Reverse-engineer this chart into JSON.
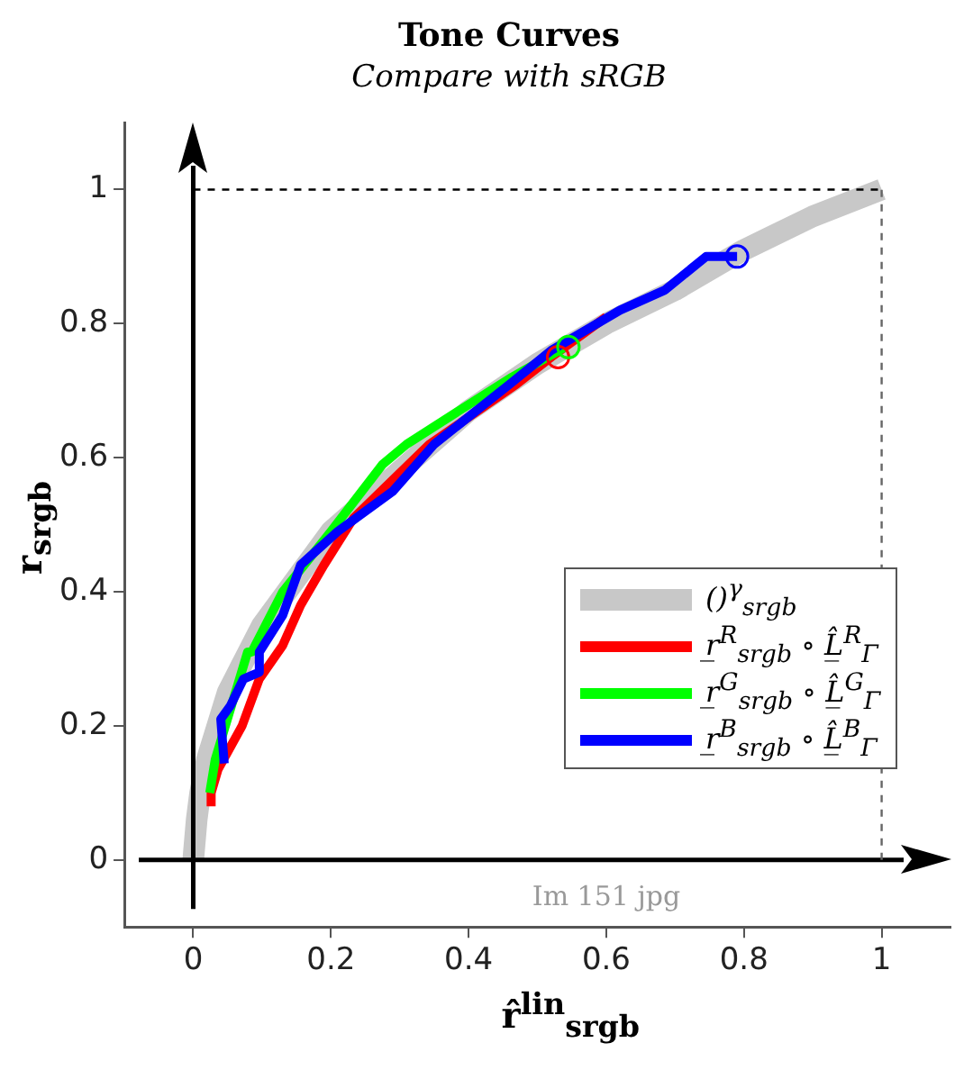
{
  "chart_data": {
    "type": "line",
    "title": "Tone Curves",
    "subtitle": "Compare with sRGB",
    "xlabel": "r̂$^{lin}$$_{srgb}$",
    "ylabel": "r$_{srgb}$",
    "xlim": [
      -0.1,
      1.1
    ],
    "ylim": [
      -0.1,
      1.1
    ],
    "xticks": [
      0,
      0.2,
      0.4,
      0.6,
      0.8,
      1
    ],
    "yticks": [
      0,
      0.2,
      0.4,
      0.6,
      0.8,
      1
    ],
    "grid": false,
    "legend": "bottom right",
    "marker": "none",
    "series": [
      {
        "name": "()$^{γ}$$_{srgb}$",
        "color": "#c8c8c8",
        "x": [
          0,
          0.005,
          0.01,
          0.02,
          0.05,
          0.1,
          0.2,
          0.3,
          0.4,
          0.5,
          0.6,
          0.7,
          0.8,
          0.9,
          1
        ],
        "values": [
          0,
          0.06,
          0.1,
          0.15,
          0.25,
          0.35,
          0.49,
          0.58,
          0.67,
          0.74,
          0.8,
          0.85,
          0.91,
          0.96,
          1
        ]
      },
      {
        "name": "r̲$^{R}$$_{srgb}$ ∘ L̲̂$^{R}$$_{Γ}$",
        "color": "#ff0000",
        "x": [
          0.026,
          0.026,
          0.036,
          0.071,
          0.096,
          0.13,
          0.156,
          0.19,
          0.233,
          0.343,
          0.47,
          0.52,
          0.6
        ],
        "values": [
          0.08,
          0.1,
          0.135,
          0.2,
          0.27,
          0.32,
          0.38,
          0.44,
          0.51,
          0.62,
          0.71,
          0.75,
          0.81
        ]
      },
      {
        "name": "r̲$^{G}$$_{srgb}$ ∘ L̲̂$^{G}$$_{Γ}$",
        "color": "#00ff00",
        "x": [
          0.024,
          0.032,
          0.079,
          0.085,
          0.13,
          0.2,
          0.275,
          0.31,
          0.386,
          0.463,
          0.54
        ],
        "values": [
          0.1,
          0.15,
          0.31,
          0.31,
          0.4,
          0.49,
          0.59,
          0.62,
          0.67,
          0.72,
          0.765
        ]
      },
      {
        "name": "r̲$^{B}$$_{srgb}$ ∘ L̲̂$^{B}$$_{Γ}$",
        "color": "#0000ff",
        "x": [
          0.045,
          0.04,
          0.054,
          0.073,
          0.096,
          0.096,
          0.13,
          0.156,
          0.21,
          0.29,
          0.35,
          0.46,
          0.52,
          0.62,
          0.685,
          0.745,
          0.79
        ],
        "values": [
          0.144,
          0.21,
          0.23,
          0.27,
          0.28,
          0.31,
          0.365,
          0.44,
          0.49,
          0.55,
          0.62,
          0.71,
          0.76,
          0.82,
          0.85,
          0.9,
          0.9
        ]
      },
      {
        "type": "scatter",
        "marker": "circle",
        "color": "#ff0000",
        "x": [
          0.53
        ],
        "values": [
          0.75
        ]
      },
      {
        "type": "scatter",
        "marker": "circle",
        "color": "#00ff00",
        "x": [
          0.545
        ],
        "values": [
          0.765
        ]
      },
      {
        "type": "scatter",
        "marker": "circle",
        "color": "#0000ff",
        "x": [
          0.79
        ],
        "values": [
          0.9
        ]
      }
    ],
    "ref_lines": [
      {
        "axis": "x",
        "value": 0,
        "line_style": "solid",
        "color": "#000000"
      },
      {
        "axis": "y",
        "value": 0,
        "line_style": "solid",
        "color": "#000000"
      },
      {
        "axis": "y",
        "value": 1,
        "line_style": "dashed",
        "color": "#000000"
      },
      {
        "axis": "x",
        "value": 1,
        "line_style": "dashed",
        "color": "#666666"
      }
    ],
    "annotations": [
      "Im 151 jpg"
    ]
  }
}
